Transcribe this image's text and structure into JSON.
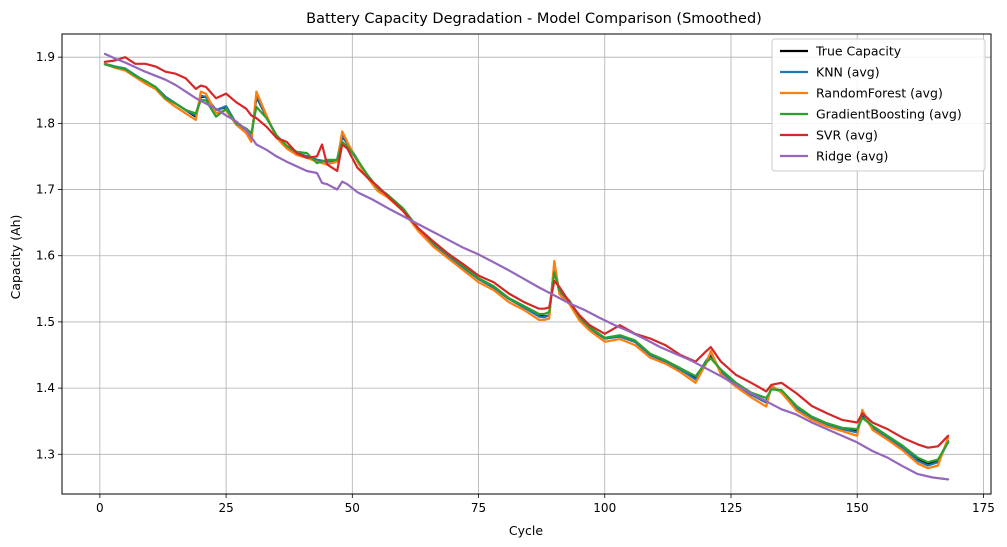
{
  "chart_data": {
    "type": "line",
    "title": "Battery Capacity Degradation - Model Comparison (Smoothed)",
    "xlabel": "Cycle",
    "ylabel": "Capacity (Ah)",
    "xlim": [
      -7.5,
      176.5
    ],
    "ylim": [
      1.24,
      1.935
    ],
    "xticks": [
      0,
      25,
      50,
      75,
      100,
      125,
      150,
      175
    ],
    "yticks": [
      1.3,
      1.4,
      1.5,
      1.6,
      1.7,
      1.8,
      1.9
    ],
    "grid": true,
    "legend_position": "top-right",
    "series": [
      {
        "name": "True Capacity",
        "color": "#000000",
        "x": [
          1,
          3,
          5,
          7,
          9,
          11,
          13,
          15,
          17,
          19,
          20,
          21,
          23,
          25,
          27,
          29,
          30,
          31,
          33,
          35,
          37,
          39,
          41,
          43,
          45,
          47,
          48,
          49,
          51,
          53,
          55,
          57,
          60,
          63,
          66,
          69,
          72,
          75,
          78,
          81,
          84,
          87,
          88,
          89,
          90,
          91,
          93,
          95,
          97,
          100,
          103,
          106,
          109,
          112,
          115,
          118,
          120,
          121,
          123,
          126,
          129,
          132,
          133,
          135,
          138,
          141,
          144,
          147,
          150,
          151,
          153,
          156,
          159,
          162,
          164,
          166,
          168
        ],
        "y": [
          1.89,
          1.885,
          1.882,
          1.872,
          1.864,
          1.855,
          1.84,
          1.83,
          1.82,
          1.81,
          1.84,
          1.84,
          1.82,
          1.825,
          1.8,
          1.79,
          1.778,
          1.84,
          1.81,
          1.78,
          1.765,
          1.755,
          1.75,
          1.745,
          1.742,
          1.745,
          1.78,
          1.77,
          1.745,
          1.72,
          1.7,
          1.69,
          1.67,
          1.64,
          1.618,
          1.6,
          1.582,
          1.565,
          1.552,
          1.535,
          1.522,
          1.51,
          1.508,
          1.51,
          1.585,
          1.545,
          1.53,
          1.505,
          1.49,
          1.475,
          1.478,
          1.47,
          1.45,
          1.44,
          1.428,
          1.415,
          1.44,
          1.45,
          1.425,
          1.405,
          1.39,
          1.38,
          1.4,
          1.395,
          1.37,
          1.355,
          1.345,
          1.338,
          1.335,
          1.36,
          1.34,
          1.325,
          1.31,
          1.292,
          1.285,
          1.29,
          1.32
        ]
      },
      {
        "name": "KNN (avg)",
        "color": "#1f77b4",
        "x": [
          1,
          3,
          5,
          7,
          9,
          11,
          13,
          15,
          17,
          19,
          20,
          21,
          23,
          25,
          27,
          29,
          30,
          31,
          33,
          35,
          37,
          39,
          41,
          43,
          45,
          47,
          48,
          49,
          51,
          53,
          55,
          57,
          60,
          63,
          66,
          69,
          72,
          75,
          78,
          81,
          84,
          87,
          88,
          89,
          90,
          91,
          93,
          95,
          97,
          100,
          103,
          106,
          109,
          112,
          115,
          118,
          120,
          121,
          123,
          126,
          129,
          132,
          133,
          135,
          138,
          141,
          144,
          147,
          150,
          151,
          153,
          156,
          159,
          162,
          164,
          166,
          168
        ],
        "y": [
          1.89,
          1.886,
          1.883,
          1.873,
          1.863,
          1.855,
          1.84,
          1.83,
          1.82,
          1.812,
          1.842,
          1.84,
          1.82,
          1.826,
          1.8,
          1.79,
          1.777,
          1.842,
          1.81,
          1.78,
          1.765,
          1.755,
          1.75,
          1.745,
          1.742,
          1.745,
          1.782,
          1.77,
          1.745,
          1.72,
          1.7,
          1.69,
          1.67,
          1.64,
          1.618,
          1.6,
          1.582,
          1.565,
          1.552,
          1.535,
          1.522,
          1.508,
          1.507,
          1.51,
          1.588,
          1.545,
          1.53,
          1.505,
          1.49,
          1.475,
          1.478,
          1.47,
          1.45,
          1.44,
          1.428,
          1.413,
          1.44,
          1.452,
          1.425,
          1.405,
          1.39,
          1.378,
          1.4,
          1.395,
          1.37,
          1.355,
          1.345,
          1.338,
          1.333,
          1.362,
          1.34,
          1.325,
          1.31,
          1.29,
          1.283,
          1.288,
          1.32
        ]
      },
      {
        "name": "RandomForest (avg)",
        "color": "#ff7f0e",
        "x": [
          1,
          3,
          5,
          7,
          9,
          11,
          13,
          15,
          17,
          19,
          20,
          21,
          23,
          25,
          27,
          29,
          30,
          31,
          33,
          35,
          37,
          39,
          41,
          43,
          45,
          47,
          48,
          49,
          51,
          53,
          55,
          57,
          60,
          63,
          66,
          69,
          72,
          75,
          78,
          81,
          84,
          87,
          88,
          89,
          90,
          91,
          93,
          95,
          97,
          100,
          103,
          106,
          109,
          112,
          115,
          118,
          120,
          121,
          123,
          126,
          129,
          132,
          133,
          135,
          138,
          141,
          144,
          147,
          150,
          151,
          153,
          156,
          159,
          162,
          164,
          166,
          168
        ],
        "y": [
          1.89,
          1.884,
          1.88,
          1.87,
          1.86,
          1.852,
          1.836,
          1.825,
          1.815,
          1.805,
          1.848,
          1.845,
          1.815,
          1.82,
          1.798,
          1.785,
          1.772,
          1.848,
          1.812,
          1.778,
          1.762,
          1.752,
          1.748,
          1.742,
          1.738,
          1.742,
          1.788,
          1.772,
          1.742,
          1.718,
          1.698,
          1.688,
          1.668,
          1.638,
          1.614,
          1.596,
          1.578,
          1.56,
          1.548,
          1.53,
          1.518,
          1.503,
          1.503,
          1.505,
          1.592,
          1.542,
          1.527,
          1.502,
          1.487,
          1.47,
          1.474,
          1.465,
          1.446,
          1.437,
          1.424,
          1.408,
          1.436,
          1.456,
          1.421,
          1.402,
          1.386,
          1.372,
          1.404,
          1.393,
          1.366,
          1.352,
          1.342,
          1.335,
          1.328,
          1.367,
          1.337,
          1.322,
          1.306,
          1.286,
          1.279,
          1.283,
          1.325
        ]
      },
      {
        "name": "GradientBoosting (avg)",
        "color": "#2ca02c",
        "x": [
          1,
          3,
          5,
          7,
          9,
          11,
          13,
          15,
          17,
          19,
          20,
          21,
          23,
          25,
          27,
          29,
          30,
          31,
          33,
          35,
          37,
          39,
          41,
          43,
          45,
          47,
          48,
          49,
          51,
          53,
          55,
          57,
          60,
          63,
          66,
          69,
          72,
          75,
          78,
          81,
          84,
          87,
          88,
          89,
          90,
          91,
          93,
          95,
          97,
          100,
          103,
          106,
          109,
          112,
          115,
          118,
          120,
          121,
          123,
          126,
          129,
          132,
          133,
          135,
          138,
          141,
          144,
          147,
          150,
          151,
          153,
          156,
          159,
          162,
          164,
          166,
          168
        ],
        "y": [
          1.889,
          1.885,
          1.882,
          1.872,
          1.864,
          1.855,
          1.838,
          1.83,
          1.82,
          1.815,
          1.835,
          1.835,
          1.81,
          1.822,
          1.8,
          1.792,
          1.785,
          1.825,
          1.808,
          1.782,
          1.766,
          1.757,
          1.755,
          1.74,
          1.745,
          1.745,
          1.772,
          1.765,
          1.745,
          1.722,
          1.703,
          1.692,
          1.672,
          1.642,
          1.62,
          1.602,
          1.584,
          1.566,
          1.554,
          1.536,
          1.524,
          1.512,
          1.512,
          1.515,
          1.575,
          1.548,
          1.532,
          1.508,
          1.492,
          1.476,
          1.48,
          1.472,
          1.452,
          1.442,
          1.43,
          1.418,
          1.438,
          1.445,
          1.428,
          1.408,
          1.393,
          1.385,
          1.398,
          1.397,
          1.373,
          1.357,
          1.347,
          1.34,
          1.338,
          1.355,
          1.343,
          1.328,
          1.313,
          1.295,
          1.288,
          1.292,
          1.318
        ]
      },
      {
        "name": "SVR (avg)",
        "color": "#d62728",
        "x": [
          1,
          3,
          5,
          7,
          9,
          11,
          13,
          15,
          17,
          19,
          20,
          21,
          23,
          25,
          27,
          29,
          30,
          31,
          33,
          35,
          37,
          39,
          41,
          43,
          44,
          45,
          47,
          48,
          49,
          51,
          53,
          55,
          57,
          60,
          63,
          66,
          69,
          72,
          75,
          78,
          81,
          84,
          87,
          88,
          89,
          90,
          91,
          93,
          95,
          97,
          100,
          103,
          106,
          109,
          112,
          115,
          118,
          120,
          121,
          123,
          126,
          129,
          132,
          133,
          135,
          138,
          141,
          144,
          147,
          150,
          151,
          153,
          156,
          159,
          162,
          164,
          166,
          168
        ],
        "y": [
          1.893,
          1.895,
          1.9,
          1.89,
          1.89,
          1.886,
          1.878,
          1.875,
          1.868,
          1.852,
          1.857,
          1.855,
          1.838,
          1.845,
          1.832,
          1.822,
          1.812,
          1.808,
          1.795,
          1.778,
          1.772,
          1.755,
          1.748,
          1.75,
          1.768,
          1.738,
          1.728,
          1.768,
          1.762,
          1.733,
          1.718,
          1.705,
          1.69,
          1.668,
          1.642,
          1.622,
          1.603,
          1.587,
          1.57,
          1.56,
          1.543,
          1.53,
          1.52,
          1.52,
          1.522,
          1.562,
          1.553,
          1.53,
          1.51,
          1.495,
          1.482,
          1.495,
          1.482,
          1.475,
          1.465,
          1.45,
          1.44,
          1.455,
          1.462,
          1.44,
          1.42,
          1.408,
          1.395,
          1.405,
          1.408,
          1.392,
          1.373,
          1.362,
          1.352,
          1.348,
          1.362,
          1.348,
          1.338,
          1.325,
          1.315,
          1.31,
          1.312,
          1.328
        ]
      },
      {
        "name": "Ridge (avg)",
        "color": "#9467bd",
        "x": [
          1,
          3,
          5,
          7,
          9,
          11,
          13,
          15,
          17,
          19,
          21,
          23,
          25,
          27,
          29,
          31,
          33,
          35,
          37,
          39,
          41,
          43,
          44,
          45,
          47,
          48,
          49,
          51,
          54,
          57,
          60,
          63,
          66,
          69,
          72,
          75,
          78,
          81,
          84,
          87,
          90,
          93,
          96,
          99,
          102,
          105,
          108,
          111,
          114,
          117,
          120,
          123,
          126,
          129,
          132,
          135,
          138,
          141,
          144,
          147,
          150,
          153,
          156,
          159,
          162,
          165,
          168
        ],
        "y": [
          1.905,
          1.898,
          1.892,
          1.885,
          1.878,
          1.872,
          1.866,
          1.858,
          1.848,
          1.838,
          1.83,
          1.822,
          1.812,
          1.803,
          1.79,
          1.768,
          1.76,
          1.75,
          1.742,
          1.735,
          1.728,
          1.725,
          1.71,
          1.708,
          1.7,
          1.712,
          1.708,
          1.696,
          1.685,
          1.672,
          1.66,
          1.648,
          1.636,
          1.624,
          1.612,
          1.602,
          1.59,
          1.578,
          1.565,
          1.552,
          1.54,
          1.528,
          1.518,
          1.506,
          1.495,
          1.485,
          1.474,
          1.462,
          1.452,
          1.442,
          1.43,
          1.418,
          1.405,
          1.392,
          1.38,
          1.368,
          1.36,
          1.348,
          1.338,
          1.328,
          1.318,
          1.305,
          1.295,
          1.282,
          1.27,
          1.265,
          1.262
        ]
      }
    ]
  }
}
